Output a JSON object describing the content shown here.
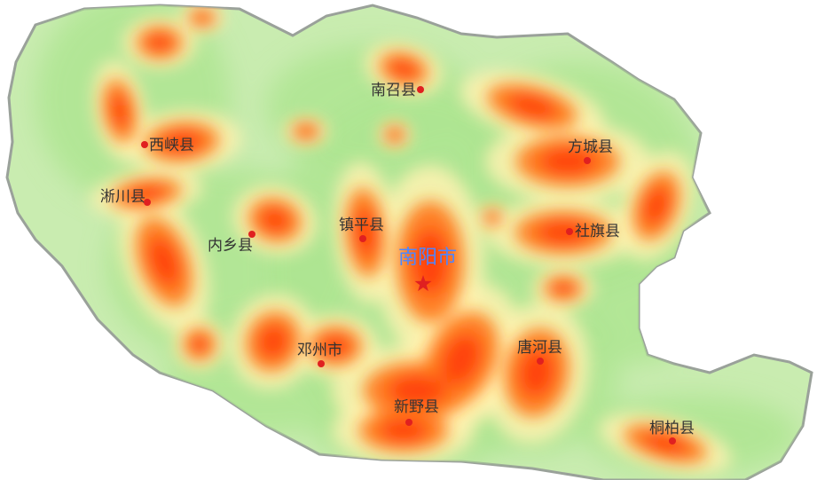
{
  "map": {
    "region_fill": "#c9ecb0",
    "border_color": "#9aa19a",
    "heat_colors": {
      "low": "#aee592",
      "mid": "#fff2b0",
      "high": "#ff7a1a",
      "peak": "#ff3b05"
    },
    "marker_color": "#e02020",
    "capital_color": "#4d86ff",
    "capital": {
      "label": "南阳市",
      "marker_icon": "star-icon"
    },
    "places": [
      {
        "label": "南召县"
      },
      {
        "label": "西峡县"
      },
      {
        "label": "方城县"
      },
      {
        "label": "淅川县"
      },
      {
        "label": "镇平县"
      },
      {
        "label": "社旗县"
      },
      {
        "label": "内乡县"
      },
      {
        "label": "邓州市"
      },
      {
        "label": "唐河县"
      },
      {
        "label": "新野县"
      },
      {
        "label": "桐柏县"
      }
    ]
  }
}
